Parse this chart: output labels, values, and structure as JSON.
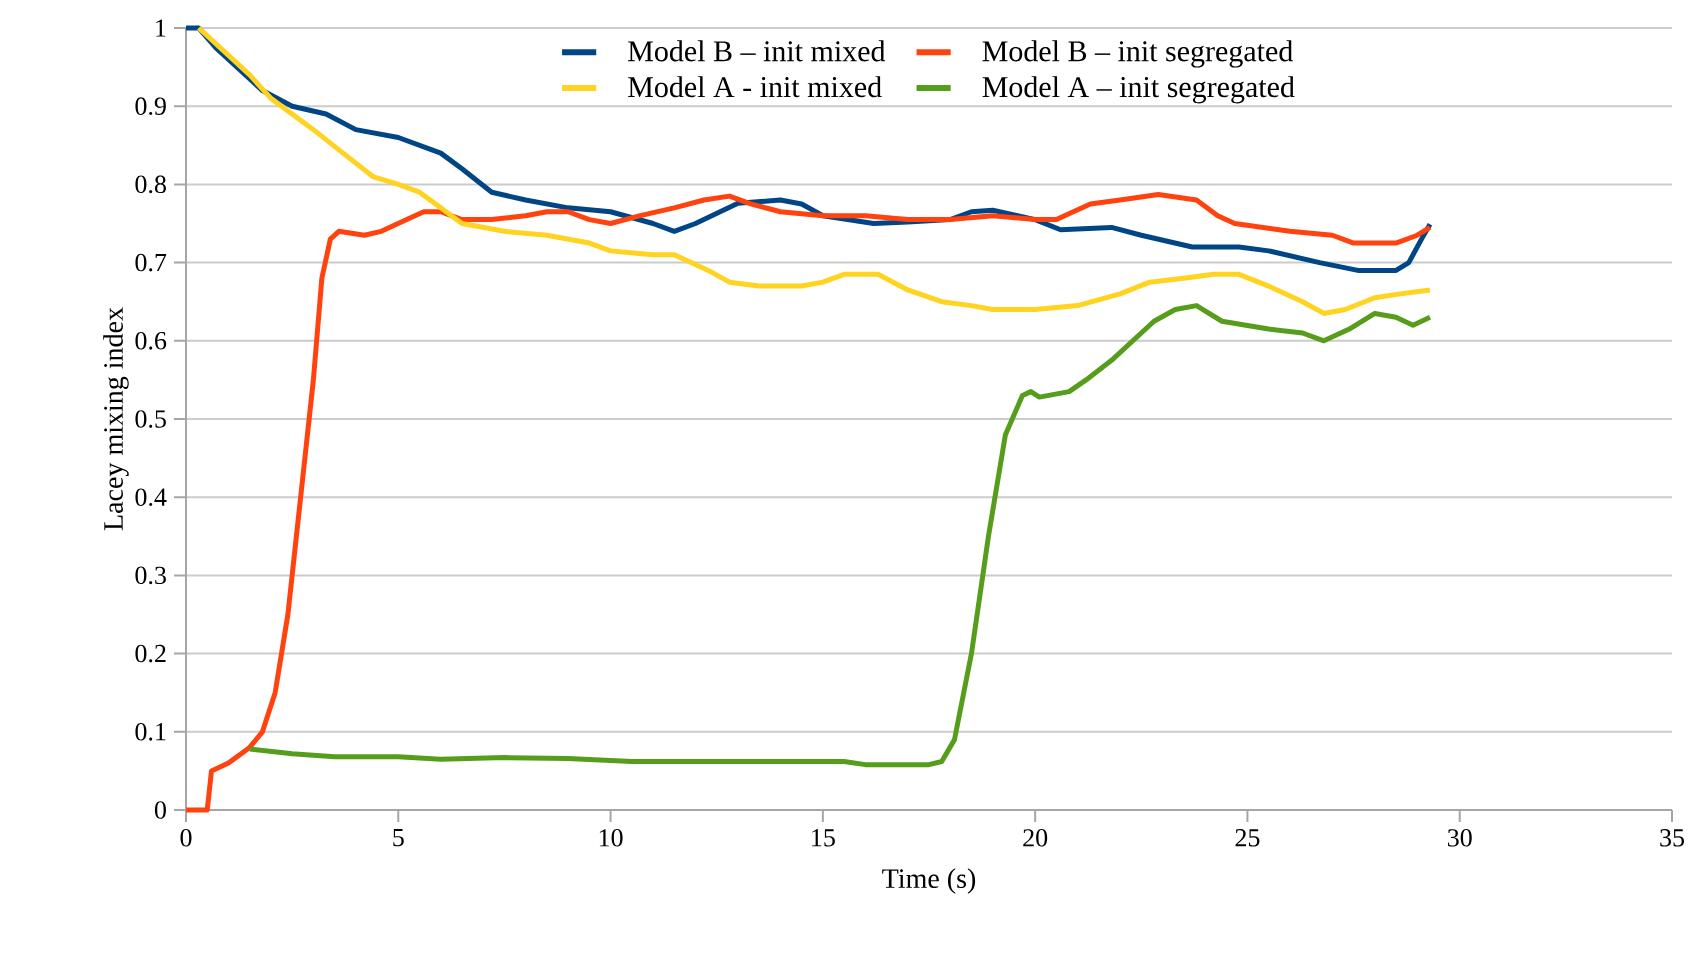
{
  "chart_data": {
    "type": "line",
    "xlabel": "Time (s)",
    "ylabel": "Lacey mixing index",
    "xlim": [
      0,
      35
    ],
    "xticks": [
      0,
      5,
      10,
      15,
      20,
      25,
      30,
      35
    ],
    "ylim": [
      0,
      1
    ],
    "yticks": [
      0,
      0.1,
      0.2,
      0.3,
      0.4,
      0.5,
      0.6,
      0.7,
      0.8,
      0.9,
      1
    ],
    "grid": "y",
    "legend": "top",
    "marker": "none",
    "line_style": "solid",
    "series": [
      {
        "name": "Model B – init mixed",
        "color": "#004586",
        "x": [
          0,
          0.3,
          0.7,
          1.2,
          1.8,
          2.5,
          3.3,
          4,
          5,
          6,
          6.5,
          7.2,
          8,
          9,
          10,
          11,
          11.5,
          12,
          13,
          14,
          14.5,
          15,
          16.2,
          17,
          18,
          18.5,
          19,
          20,
          20.6,
          21.8,
          22.5,
          23.7,
          24.8,
          25.5,
          26.7,
          27.6,
          28.1,
          28.5,
          28.8,
          29.1,
          29.3
        ],
        "values": [
          1,
          1,
          0.975,
          0.95,
          0.92,
          0.9,
          0.89,
          0.87,
          0.86,
          0.84,
          0.82,
          0.79,
          0.78,
          0.77,
          0.765,
          0.75,
          0.74,
          0.75,
          0.776,
          0.78,
          0.775,
          0.76,
          0.75,
          0.752,
          0.755,
          0.765,
          0.767,
          0.755,
          0.742,
          0.745,
          0.735,
          0.72,
          0.72,
          0.715,
          0.7,
          0.69,
          0.69,
          0.69,
          0.7,
          0.73,
          0.749
        ]
      },
      {
        "name": "Model B – init segregated",
        "color": "#ff420e",
        "x": [
          0,
          0.5,
          0.6,
          1.0,
          1.5,
          1.8,
          2.1,
          2.4,
          2.7,
          3.0,
          3.2,
          3.4,
          3.6,
          4.2,
          4.6,
          5.2,
          5.6,
          6.0,
          6.5,
          7.2,
          8,
          8.5,
          9,
          9.5,
          10,
          10.7,
          11.5,
          12.2,
          12.8,
          13.3,
          14,
          15,
          16,
          17,
          18,
          19,
          20,
          20.5,
          21.3,
          22,
          22.9,
          23.8,
          24.3,
          24.7,
          26,
          27,
          27.5,
          28.5,
          29,
          29.3
        ],
        "values": [
          0,
          0,
          0.05,
          0.06,
          0.08,
          0.1,
          0.15,
          0.25,
          0.4,
          0.55,
          0.68,
          0.73,
          0.74,
          0.735,
          0.74,
          0.755,
          0.765,
          0.765,
          0.755,
          0.755,
          0.76,
          0.765,
          0.765,
          0.755,
          0.75,
          0.76,
          0.77,
          0.78,
          0.785,
          0.775,
          0.765,
          0.76,
          0.76,
          0.755,
          0.755,
          0.76,
          0.755,
          0.755,
          0.775,
          0.78,
          0.787,
          0.78,
          0.76,
          0.75,
          0.74,
          0.735,
          0.725,
          0.725,
          0.735,
          0.745
        ]
      },
      {
        "name": "Model A - init mixed",
        "color": "#ffd320",
        "x": [
          0.3,
          0.9,
          1.5,
          2,
          3,
          3.7,
          4.4,
          5,
          5.5,
          6,
          6.5,
          7.5,
          8.5,
          9.5,
          10,
          11,
          11.5,
          12.3,
          12.8,
          13.5,
          14.5,
          15,
          15.5,
          16.3,
          17,
          17.8,
          18.5,
          19,
          20,
          21,
          22,
          22.7,
          23.5,
          24.2,
          24.8,
          25.5,
          26.3,
          26.8,
          27.3,
          28,
          28.6,
          29.3
        ],
        "values": [
          1,
          0.97,
          0.94,
          0.91,
          0.87,
          0.84,
          0.81,
          0.8,
          0.79,
          0.77,
          0.75,
          0.74,
          0.735,
          0.725,
          0.715,
          0.71,
          0.71,
          0.69,
          0.675,
          0.67,
          0.67,
          0.675,
          0.685,
          0.685,
          0.665,
          0.65,
          0.645,
          0.64,
          0.64,
          0.645,
          0.66,
          0.675,
          0.68,
          0.685,
          0.685,
          0.67,
          0.65,
          0.635,
          0.64,
          0.655,
          0.66,
          0.665
        ]
      },
      {
        "name": "Model A – init segregated",
        "color": "#579d1c",
        "x": [
          1.5,
          2.5,
          3.5,
          5,
          6,
          7.5,
          9,
          10.5,
          12,
          14,
          15.5,
          16,
          17.5,
          17.8,
          18.1,
          18.5,
          18.9,
          19.3,
          19.7,
          19.9,
          20.1,
          20.8,
          21.2,
          21.8,
          22.3,
          22.8,
          23.3,
          23.8,
          24.4,
          25.5,
          26.3,
          26.8,
          27.4,
          28,
          28.5,
          28.9,
          29.3
        ],
        "values": [
          0.078,
          0.072,
          0.068,
          0.068,
          0.065,
          0.067,
          0.066,
          0.062,
          0.062,
          0.062,
          0.062,
          0.058,
          0.058,
          0.062,
          0.09,
          0.2,
          0.35,
          0.48,
          0.53,
          0.535,
          0.528,
          0.535,
          0.55,
          0.575,
          0.6,
          0.625,
          0.64,
          0.645,
          0.625,
          0.615,
          0.61,
          0.6,
          0.615,
          0.635,
          0.63,
          0.62,
          0.63
        ]
      }
    ]
  }
}
